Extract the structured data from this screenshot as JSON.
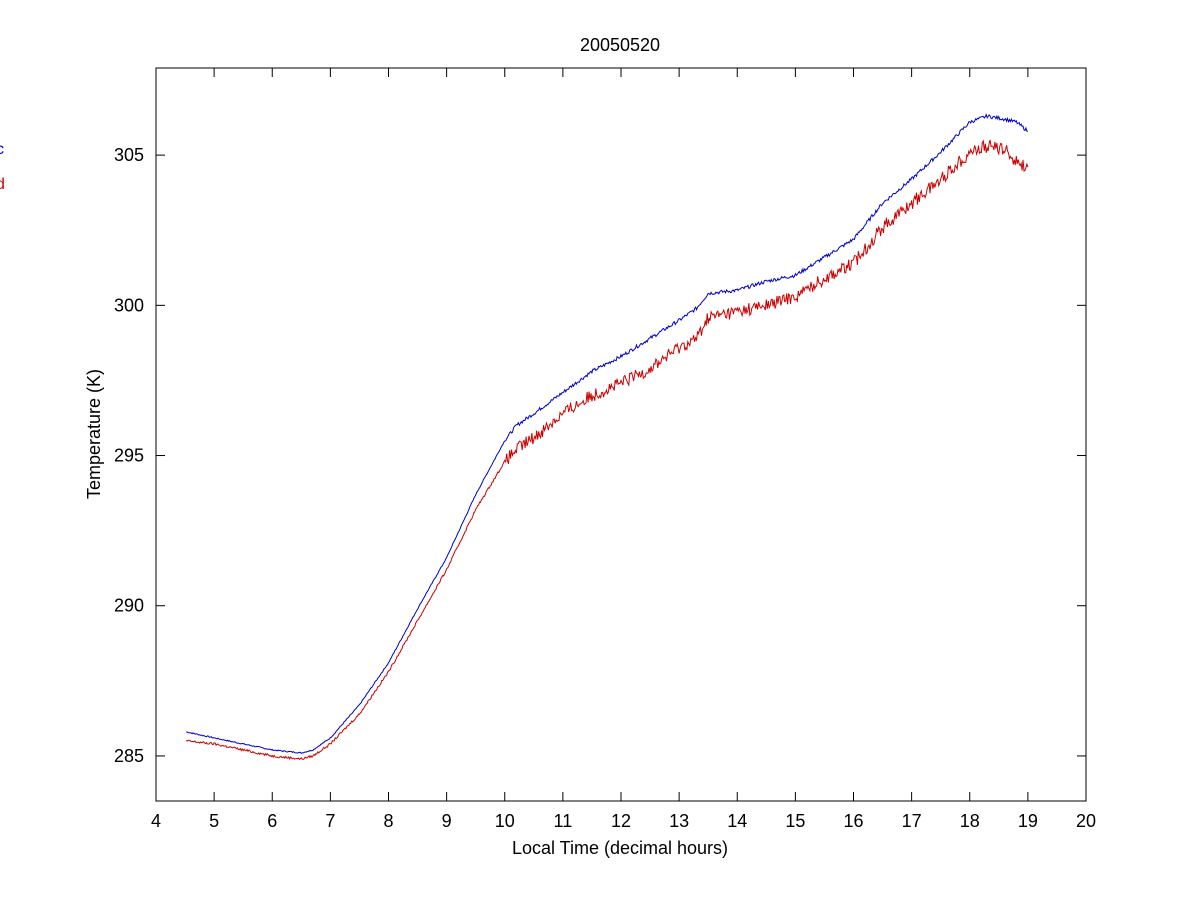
{
  "chart_data": {
    "type": "line",
    "title": "20050520",
    "xlabel": "Local Time (decimal hours)",
    "ylabel": "Temperature (K)",
    "xlim": [
      4,
      20
    ],
    "ylim": [
      283.5,
      307.9
    ],
    "xticks": [
      4,
      5,
      6,
      7,
      8,
      9,
      10,
      11,
      12,
      13,
      14,
      15,
      16,
      17,
      18,
      19,
      20
    ],
    "yticks": [
      285,
      290,
      295,
      300,
      305
    ],
    "grid": false,
    "legend_position": "left, clipped",
    "series": [
      {
        "name": "c",
        "color": "#0000cc",
        "x": [
          4.52,
          5.0,
          5.5,
          6.0,
          6.5,
          6.7,
          7.0,
          7.5,
          8.0,
          8.5,
          9.0,
          9.5,
          10.0,
          10.2,
          10.5,
          11.0,
          11.5,
          12.0,
          12.5,
          13.0,
          13.3,
          13.5,
          14.0,
          14.5,
          15.0,
          15.5,
          16.0,
          16.5,
          17.0,
          17.5,
          18.0,
          18.3,
          18.6,
          18.8,
          19.0
        ],
        "y": [
          285.8,
          285.6,
          285.4,
          285.2,
          285.1,
          285.2,
          285.6,
          286.7,
          288.1,
          289.9,
          291.6,
          293.7,
          295.5,
          296.0,
          296.4,
          297.1,
          297.8,
          298.3,
          298.9,
          299.5,
          299.9,
          300.4,
          300.5,
          300.8,
          301.0,
          301.6,
          302.2,
          303.4,
          304.2,
          305.1,
          306.1,
          306.3,
          306.2,
          306.1,
          305.8
        ]
      },
      {
        "name": "d",
        "color": "#cc0000",
        "x": [
          4.52,
          5.0,
          5.5,
          6.0,
          6.5,
          6.7,
          7.0,
          7.5,
          8.0,
          8.5,
          9.0,
          9.5,
          10.0,
          10.2,
          10.5,
          11.0,
          11.5,
          12.0,
          12.5,
          13.0,
          13.3,
          13.5,
          14.0,
          14.5,
          15.0,
          15.5,
          16.0,
          16.5,
          17.0,
          17.5,
          18.0,
          18.3,
          18.6,
          18.8,
          19.0
        ],
        "y": [
          285.5,
          285.4,
          285.2,
          285.0,
          284.9,
          285.0,
          285.4,
          286.4,
          287.8,
          289.5,
          291.2,
          293.2,
          294.8,
          295.2,
          295.6,
          296.4,
          297.0,
          297.4,
          297.9,
          298.6,
          298.9,
          299.6,
          299.8,
          300.0,
          300.3,
          300.9,
          301.4,
          302.6,
          303.4,
          304.2,
          305.1,
          305.3,
          305.2,
          304.8,
          304.6
        ]
      }
    ]
  }
}
